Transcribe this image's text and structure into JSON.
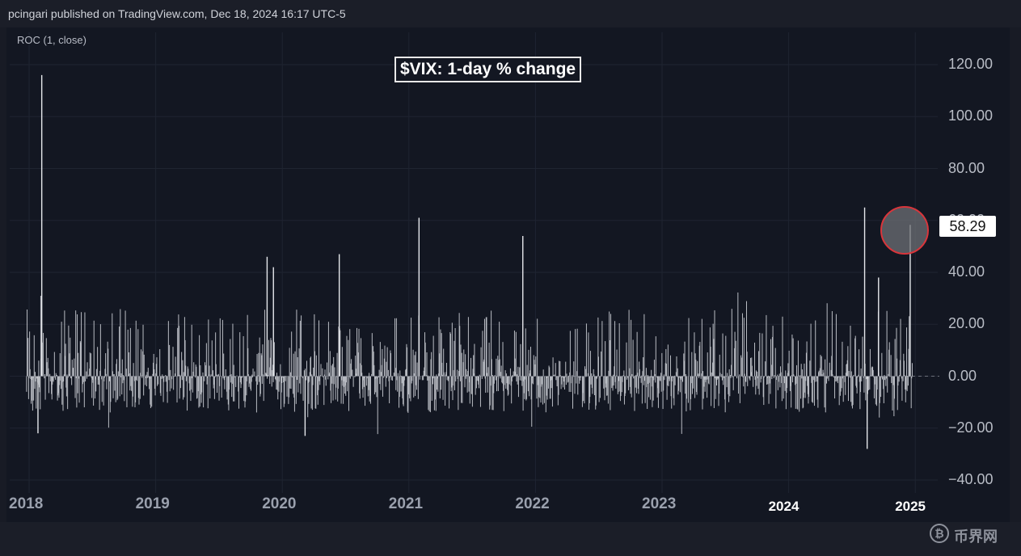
{
  "header": {
    "text": "pcingari published on TradingView.com, Dec 18, 2024 16:17 UTC-5"
  },
  "indicator": {
    "label": "ROC (1, close)"
  },
  "watermark": {
    "logo": "币界网",
    "icon": "bitcoin-circle-icon"
  },
  "colors": {
    "background": "#131722",
    "series": "#e6e8ec",
    "highlight_circle": "#d9353b",
    "dashed_zero": "#6b6f79"
  },
  "chart_data": {
    "type": "bar",
    "title": "$VIX: 1-day % change",
    "xlabel": "",
    "ylabel": "",
    "ylim": [
      -40,
      120
    ],
    "yticks": [
      "120.00",
      "100.00",
      "80.00",
      "60.00",
      "40.00",
      "20.00",
      "0.00",
      "−20.00",
      "−40.00"
    ],
    "xticks": [
      {
        "label": "2018",
        "value": 2018
      },
      {
        "label": "2019",
        "value": 2019
      },
      {
        "label": "2020",
        "value": 2020
      },
      {
        "label": "2021",
        "value": 2021
      },
      {
        "label": "2022",
        "value": 2022
      },
      {
        "label": "2023",
        "value": 2023
      },
      {
        "label": "2024",
        "value": 2024
      },
      {
        "label": "2025",
        "value": 2025
      }
    ],
    "last_value": 58.29,
    "last_value_label": "58.29",
    "notable_spikes": [
      {
        "x": 2018.1,
        "y": 116
      },
      {
        "x": 2018.07,
        "y": -22
      },
      {
        "x": 2019.88,
        "y": 46
      },
      {
        "x": 2019.93,
        "y": 42
      },
      {
        "x": 2020.18,
        "y": -23
      },
      {
        "x": 2020.45,
        "y": 47
      },
      {
        "x": 2021.08,
        "y": 61
      },
      {
        "x": 2021.9,
        "y": 54
      },
      {
        "x": 2024.6,
        "y": 65
      },
      {
        "x": 2024.62,
        "y": -28
      },
      {
        "x": 2024.71,
        "y": 38
      },
      {
        "x": 2024.96,
        "y": 58.29
      }
    ],
    "grid": true,
    "legend": "none",
    "series_color": "#e6e8ec"
  }
}
